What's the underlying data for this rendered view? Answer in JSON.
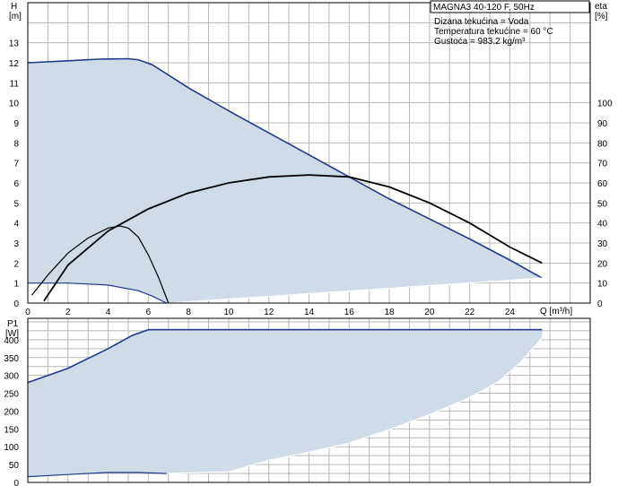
{
  "chart_data": [
    {
      "type": "line",
      "title": "MAGNA3 40-120 F, 50Hz",
      "annotations": [
        "Dizana tekućina = Voda",
        "Temperatura tekućine = 60 °C",
        "Gustoća = 983.2 kg/m³"
      ],
      "xlabel": "Q [m³/h]",
      "ylabel_left": [
        "H",
        "[m]"
      ],
      "ylabel_right": [
        "eta",
        "[%]"
      ],
      "xlim": [
        0,
        28
      ],
      "ylim_left": [
        0,
        15
      ],
      "ylim_right": [
        0,
        150
      ],
      "xticks": [
        "0",
        "2",
        "4",
        "6",
        "8",
        "10",
        "12",
        "14",
        "16",
        "18",
        "20",
        "22",
        "24"
      ],
      "yticks_left": [
        "0",
        "1",
        "2",
        "3",
        "4",
        "5",
        "6",
        "7",
        "8",
        "9",
        "10",
        "11",
        "12",
        "13"
      ],
      "yticks_right": [
        "0",
        "10",
        "20",
        "30",
        "40",
        "50",
        "60",
        "70",
        "80",
        "90",
        "100"
      ],
      "grid": true,
      "colors": {
        "head": "#1f3a8a",
        "area": "#cfdbe6",
        "eta": "#000000",
        "grid": "#b8b8b8"
      },
      "series": [
        {
          "role": "head_max",
          "x": [
            0,
            2,
            3.5,
            5,
            5.5,
            6.2,
            8,
            10,
            12,
            14,
            16,
            18,
            20,
            22,
            24,
            25.6
          ],
          "y": [
            12.0,
            12.1,
            12.18,
            12.2,
            12.15,
            11.9,
            10.75,
            9.6,
            8.5,
            7.4,
            6.3,
            5.2,
            4.2,
            3.2,
            2.15,
            1.25
          ]
        },
        {
          "role": "head_min",
          "x": [
            0,
            2,
            4,
            5.5,
            6.2,
            6.9
          ],
          "y": [
            1.0,
            1.0,
            0.9,
            0.62,
            0.35,
            0.0
          ]
        },
        {
          "role": "area_lower",
          "x": [
            7.0,
            25.6
          ],
          "y": [
            0.0,
            1.25
          ]
        },
        {
          "role": "eta_max",
          "x": [
            0.8,
            2,
            4,
            6,
            8,
            10,
            12,
            14,
            16,
            18,
            20,
            22,
            24,
            25.6
          ],
          "y": [
            1.0,
            19,
            36,
            47,
            55,
            60,
            63,
            64,
            63,
            58,
            50,
            40,
            28,
            20
          ]
        },
        {
          "role": "eta_min",
          "x": [
            0.2,
            1,
            2,
            3,
            4,
            4.6,
            5,
            5.5,
            6,
            6.5,
            7.0
          ],
          "y": [
            4.0,
            14,
            25,
            32.5,
            37.5,
            38.5,
            37.5,
            33,
            24,
            13,
            0
          ]
        }
      ]
    },
    {
      "type": "line",
      "ylabel_left": [
        "P1",
        "[W]"
      ],
      "xlim": [
        0,
        28
      ],
      "ylim_left": [
        0,
        460
      ],
      "yticks_left": [
        "0",
        "50",
        "100",
        "150",
        "200",
        "250",
        "300",
        "350",
        "400"
      ],
      "grid": true,
      "series": [
        {
          "role": "power_max",
          "x": [
            0,
            2,
            4,
            5.2,
            6,
            8,
            12,
            16,
            20,
            24,
            25.6
          ],
          "y": [
            280,
            320,
            375,
            412,
            428,
            428,
            428,
            428,
            428,
            428,
            428
          ]
        },
        {
          "role": "power_min",
          "x": [
            0,
            2,
            4,
            5.5,
            6.9
          ],
          "y": [
            16,
            22,
            28,
            28,
            25
          ]
        },
        {
          "role": "area_upper_right",
          "x": [
            7.0,
            10,
            12,
            14,
            16,
            18,
            20,
            22,
            23.5,
            24.5,
            25.6
          ],
          "y": [
            25,
            30,
            62,
            85,
            110,
            148,
            190,
            238,
            285,
            335,
            405
          ]
        }
      ]
    }
  ]
}
